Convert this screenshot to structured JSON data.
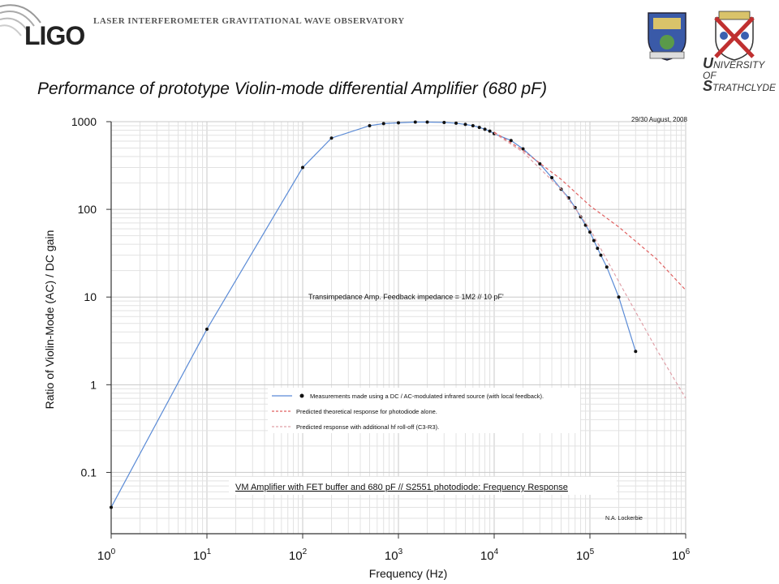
{
  "header": {
    "org_name": "LASER INTERFEROMETER GRAVITATIONAL WAVE OBSERVATORY",
    "logo_text": "LIGO",
    "university_line1": "NIVERSITY OF",
    "university_line2": "TRATHCLYDE",
    "university_initial1": "U",
    "university_initial2": "S"
  },
  "title": "Performance of prototype Violin-mode differential Amplifier (680 pF)",
  "chart_data": {
    "type": "line",
    "xlabel": "Frequency (Hz)",
    "ylabel": "Ratio of Violin-Mode (AC) / DC gain",
    "x_scale": "log",
    "y_scale": "log",
    "xlim": [
      1,
      1000000
    ],
    "ylim": [
      0.02,
      1000
    ],
    "x_ticks": [
      {
        "value": 1,
        "base": "10",
        "exp": "0"
      },
      {
        "value": 10,
        "base": "10",
        "exp": "1"
      },
      {
        "value": 100,
        "base": "10",
        "exp": "2"
      },
      {
        "value": 1000,
        "base": "10",
        "exp": "3"
      },
      {
        "value": 10000,
        "base": "10",
        "exp": "4"
      },
      {
        "value": 100000,
        "base": "10",
        "exp": "5"
      },
      {
        "value": 1000000,
        "base": "10",
        "exp": "6"
      }
    ],
    "y_ticks": [
      {
        "value": 0.1,
        "label": "0.1"
      },
      {
        "value": 1,
        "label": "1"
      },
      {
        "value": 10,
        "label": "10"
      },
      {
        "value": 100,
        "label": "100"
      },
      {
        "value": 1000,
        "label": "1000"
      }
    ],
    "grid": true,
    "annotations": {
      "date": "29/30 August, 2008",
      "feedback": "Transimpedance Amp. Feedback impedance = 1M2 // 10 pF'",
      "description": "VM Amplifier with FET buffer and 680 pF // S2551 photodiode: Frequency Response",
      "author": "N.A. Lockerbie"
    },
    "series": [
      {
        "name": "Measurements made using a DC / AC-modulated infrared source (with local feedback).",
        "style": "solid-with-markers",
        "color": "#5b8bd6",
        "x": [
          1,
          10,
          100,
          200,
          500,
          700,
          1000,
          1500,
          2000,
          3000,
          4000,
          5000,
          6000,
          7000,
          8000,
          9000,
          10000,
          15000,
          20000,
          30000,
          40000,
          50000,
          60000,
          70000,
          80000,
          90000,
          100000,
          110000,
          120000,
          130000,
          150000,
          200000,
          300000
        ],
        "y": [
          0.04,
          4.3,
          300,
          650,
          900,
          950,
          970,
          990,
          990,
          980,
          960,
          930,
          900,
          860,
          820,
          780,
          730,
          610,
          490,
          330,
          230,
          170,
          135,
          105,
          82,
          66,
          55,
          44,
          36,
          30,
          22,
          10,
          2.4
        ]
      },
      {
        "name": "Predicted theoretical response for photodiode alone.",
        "style": "dashed",
        "color": "#e06060",
        "x": [
          10000,
          20000,
          50000,
          100000,
          200000,
          500000,
          1000000
        ],
        "y": [
          760,
          470,
          220,
          110,
          63,
          27,
          12
        ]
      },
      {
        "name": "Predicted response with additional hf roll-off (C3-R3).",
        "style": "dashed",
        "color": "#e0a0a8",
        "x": [
          10000,
          20000,
          50000,
          100000,
          200000,
          500000,
          1000000
        ],
        "y": [
          740,
          450,
          170,
          60,
          15,
          2.5,
          0.7
        ]
      }
    ]
  }
}
